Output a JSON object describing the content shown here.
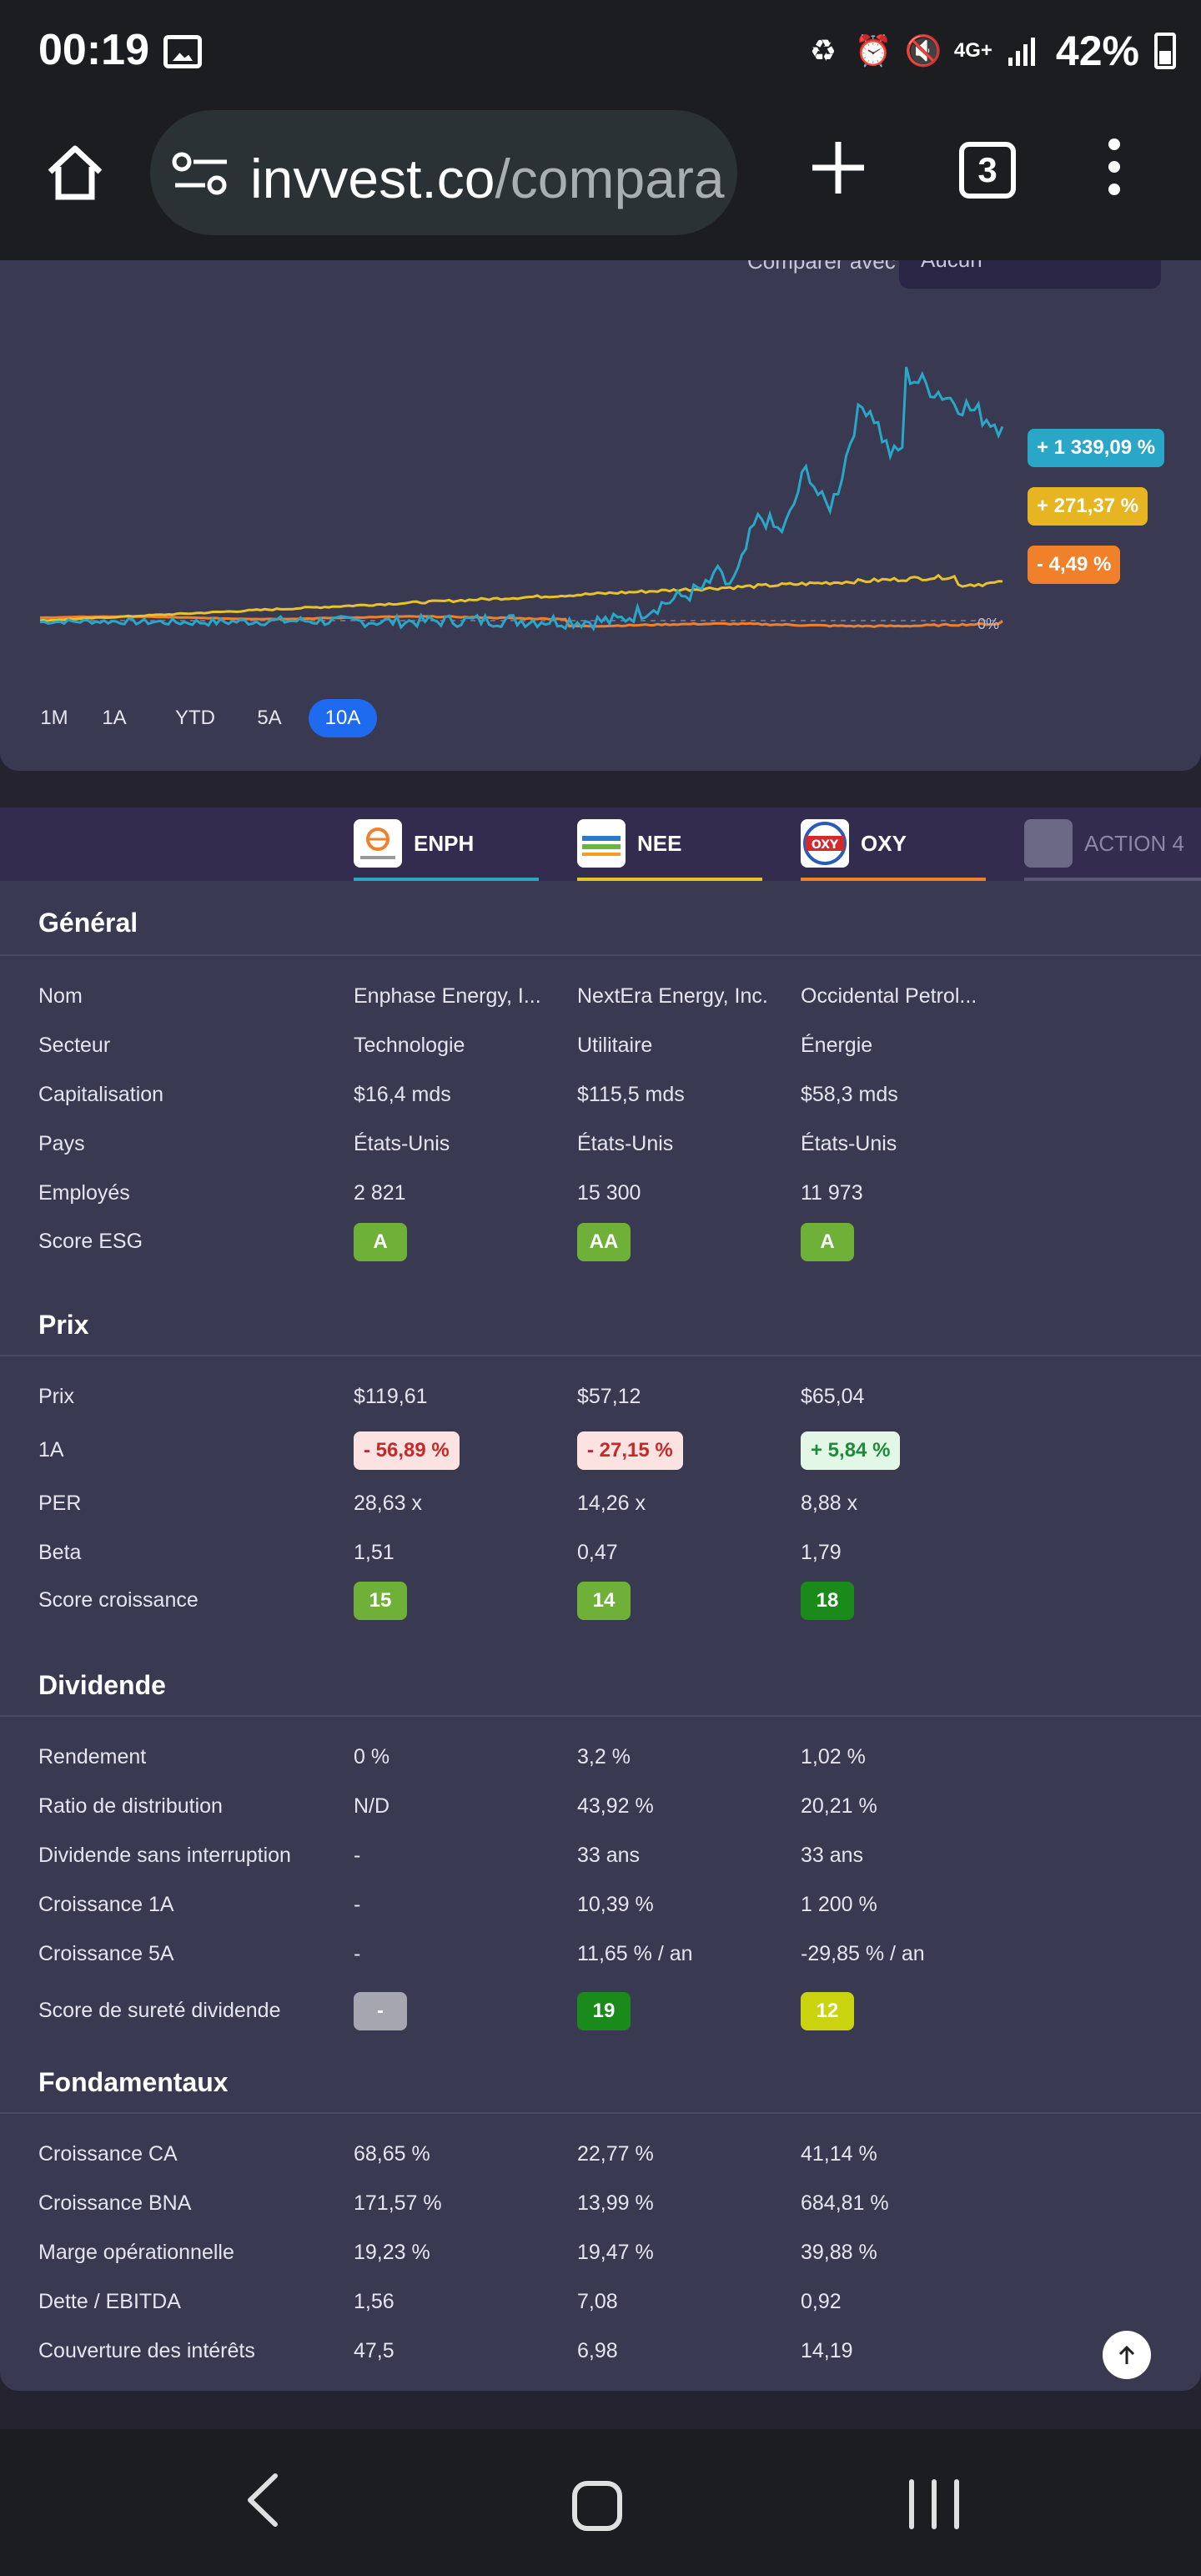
{
  "status_bar": {
    "time": "00:19",
    "network": "4G+",
    "battery": "42%"
  },
  "browser": {
    "url_host": "invvest.co",
    "url_path": "/compara",
    "tab_count": "3"
  },
  "compare": {
    "label": "Comparer avec",
    "value": "Aucun"
  },
  "chart_data": {
    "type": "line",
    "range": "10A",
    "zero_label": "0%",
    "series": [
      {
        "name": "ENPH",
        "color": "#2aa6c8",
        "end_value": 1339.09,
        "badge": "+ 1 339,09 %"
      },
      {
        "name": "NEE",
        "color": "#e7c22a",
        "end_value": 271.37,
        "badge": "+ 271,37 %"
      },
      {
        "name": "OXY",
        "color": "#f0802a",
        "end_value": -4.49,
        "badge": "- 4,49 %"
      }
    ]
  },
  "ranges": [
    "1M",
    "1A",
    "YTD",
    "5A",
    "10A"
  ],
  "tickers": [
    {
      "symbol": "ENPH",
      "color": "#2aa6c8",
      "logo": "enphase-logo"
    },
    {
      "symbol": "NEE",
      "color": "#e7c22a",
      "logo": "nextera-logo"
    },
    {
      "symbol": "OXY",
      "color": "#f0802a",
      "logo": "oxy-logo"
    },
    {
      "symbol": "ACTION 4",
      "color": "#6b6985",
      "logo": "placeholder"
    }
  ],
  "general": {
    "title": "Général",
    "rows": [
      {
        "label": "Nom",
        "values": [
          "Enphase Energy, I...",
          "NextEra Energy, Inc.",
          "Occidental Petrol..."
        ]
      },
      {
        "label": "Secteur",
        "values": [
          "Technologie",
          "Utilitaire",
          "Énergie"
        ]
      },
      {
        "label": "Capitalisation",
        "values": [
          "$16,4 mds",
          "$115,5 mds",
          "$58,3 mds"
        ]
      },
      {
        "label": "Pays",
        "values": [
          "États-Unis",
          "États-Unis",
          "États-Unis"
        ]
      },
      {
        "label": "Employés",
        "values": [
          "2 821",
          "15 300",
          "11 973"
        ]
      },
      {
        "label": "Score ESG",
        "values": [
          "A",
          "AA",
          "A"
        ]
      }
    ]
  },
  "prix": {
    "title": "Prix",
    "rows": [
      {
        "label": "Prix",
        "values": [
          "$119,61",
          "$57,12",
          "$65,04"
        ]
      },
      {
        "label": "1A",
        "values": [
          "- 56,89 %",
          "- 27,15 %",
          "+ 5,84 %"
        ]
      },
      {
        "label": "PER",
        "values": [
          "28,63 x",
          "14,26 x",
          "8,88 x"
        ]
      },
      {
        "label": "Beta",
        "values": [
          "1,51",
          "0,47",
          "1,79"
        ]
      },
      {
        "label": "Score croissance",
        "values": [
          "15",
          "14",
          "18"
        ]
      }
    ]
  },
  "dividende": {
    "title": "Dividende",
    "rows": [
      {
        "label": "Rendement",
        "values": [
          "0 %",
          "3,2 %",
          "1,02 %"
        ]
      },
      {
        "label": "Ratio de distribution",
        "values": [
          "N/D",
          "43,92 %",
          "20,21 %"
        ]
      },
      {
        "label": "Dividende sans interruption",
        "values": [
          "-",
          "33 ans",
          "33 ans"
        ]
      },
      {
        "label": "Croissance 1A",
        "values": [
          "-",
          "10,39 %",
          "1 200 %"
        ]
      },
      {
        "label": "Croissance 5A",
        "values": [
          "-",
          "11,65 % / an",
          "-29,85 % / an"
        ]
      },
      {
        "label": "Score de sureté dividende",
        "values": [
          "-",
          "19",
          "12"
        ]
      }
    ]
  },
  "fondamentaux": {
    "title": "Fondamentaux",
    "rows": [
      {
        "label": "Croissance CA",
        "values": [
          "68,65 %",
          "22,77 %",
          "41,14 %"
        ]
      },
      {
        "label": "Croissance BNA",
        "values": [
          "171,57 %",
          "13,99 %",
          "684,81 %"
        ]
      },
      {
        "label": "Marge opérationnelle",
        "values": [
          "19,23 %",
          "19,47 %",
          "39,88 %"
        ]
      },
      {
        "label": "Dette / EBITDA",
        "values": [
          "1,56",
          "7,08",
          "0,92"
        ]
      },
      {
        "label": "Couverture des intérêts",
        "values": [
          "47,5",
          "6,98",
          "14,19"
        ]
      }
    ]
  }
}
